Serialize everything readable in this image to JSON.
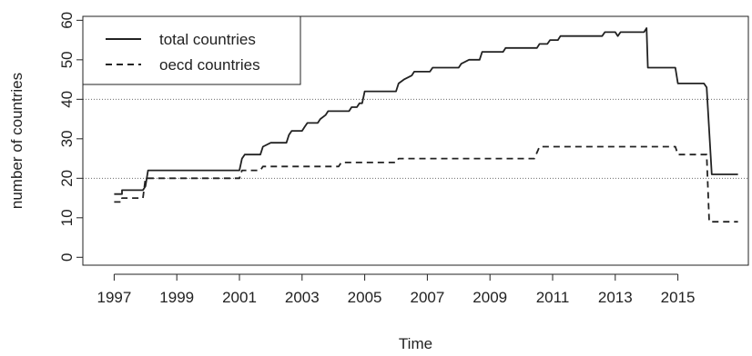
{
  "chart_data": {
    "type": "line",
    "xlabel": "Time",
    "ylabel": "number of countries",
    "xlim": [
      1996.0,
      2017.25
    ],
    "ylim": [
      -2,
      61
    ],
    "x_ticks": [
      1997,
      1999,
      2001,
      2003,
      2005,
      2007,
      2009,
      2011,
      2013,
      2015
    ],
    "y_ticks": [
      0,
      10,
      20,
      30,
      40,
      50,
      60
    ],
    "reference_lines": [
      20,
      40
    ],
    "legend": {
      "placement": "top-left",
      "entries": [
        "total countries",
        "oecd countries"
      ]
    },
    "series": [
      {
        "name": "total countries",
        "style": "solid",
        "color": "#222222",
        "points": [
          [
            1997.0,
            16
          ],
          [
            1997.25,
            16
          ],
          [
            1997.25,
            17
          ],
          [
            1997.92,
            17
          ],
          [
            1998.0,
            18
          ],
          [
            1998.08,
            22
          ],
          [
            2001.0,
            22
          ],
          [
            2001.08,
            25
          ],
          [
            2001.17,
            26
          ],
          [
            2001.67,
            26
          ],
          [
            2001.75,
            28
          ],
          [
            2002.0,
            29
          ],
          [
            2002.5,
            29
          ],
          [
            2002.58,
            31
          ],
          [
            2002.67,
            32
          ],
          [
            2003.0,
            32
          ],
          [
            2003.08,
            33
          ],
          [
            2003.17,
            34
          ],
          [
            2003.5,
            34
          ],
          [
            2003.58,
            35
          ],
          [
            2003.75,
            36
          ],
          [
            2003.83,
            37
          ],
          [
            2004.5,
            37
          ],
          [
            2004.58,
            38
          ],
          [
            2004.75,
            38
          ],
          [
            2004.83,
            39
          ],
          [
            2004.92,
            39
          ],
          [
            2005.0,
            42
          ],
          [
            2006.0,
            42
          ],
          [
            2006.08,
            44
          ],
          [
            2006.25,
            45
          ],
          [
            2006.5,
            46
          ],
          [
            2006.58,
            47
          ],
          [
            2007.08,
            47
          ],
          [
            2007.17,
            48
          ],
          [
            2008.0,
            48
          ],
          [
            2008.08,
            49
          ],
          [
            2008.33,
            50
          ],
          [
            2008.67,
            50
          ],
          [
            2008.75,
            52
          ],
          [
            2009.42,
            52
          ],
          [
            2009.5,
            53
          ],
          [
            2010.5,
            53
          ],
          [
            2010.58,
            54
          ],
          [
            2010.83,
            54
          ],
          [
            2010.92,
            55
          ],
          [
            2011.17,
            55
          ],
          [
            2011.25,
            56
          ],
          [
            2012.58,
            56
          ],
          [
            2012.67,
            57
          ],
          [
            2013.0,
            57
          ],
          [
            2013.08,
            56
          ],
          [
            2013.17,
            57
          ],
          [
            2013.92,
            57
          ],
          [
            2014.0,
            58
          ],
          [
            2014.04,
            48
          ],
          [
            2014.92,
            48
          ],
          [
            2015.0,
            44
          ],
          [
            2015.83,
            44
          ],
          [
            2015.92,
            43
          ],
          [
            2016.08,
            21
          ],
          [
            2016.92,
            21
          ]
        ]
      },
      {
        "name": "oecd countries",
        "style": "dashed",
        "color": "#222222",
        "points": [
          [
            1997.0,
            14
          ],
          [
            1997.25,
            14
          ],
          [
            1997.25,
            15
          ],
          [
            1997.92,
            15
          ],
          [
            1998.0,
            20
          ],
          [
            2001.0,
            20
          ],
          [
            2001.08,
            22
          ],
          [
            2001.67,
            22
          ],
          [
            2001.75,
            23
          ],
          [
            2004.17,
            23
          ],
          [
            2004.25,
            24
          ],
          [
            2006.0,
            24
          ],
          [
            2006.08,
            25
          ],
          [
            2010.42,
            25
          ],
          [
            2010.58,
            28
          ],
          [
            2014.92,
            28
          ],
          [
            2015.0,
            26
          ],
          [
            2015.92,
            26
          ],
          [
            2016.0,
            9
          ],
          [
            2016.92,
            9
          ]
        ]
      }
    ]
  }
}
